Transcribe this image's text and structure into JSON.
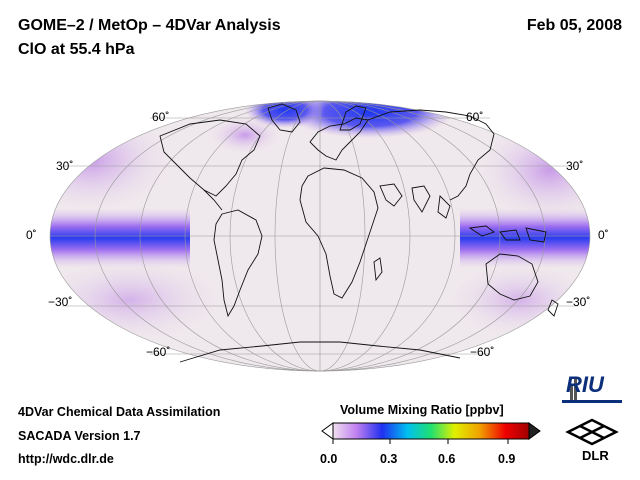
{
  "header": {
    "title_line1": "GOME–2 / MetOp – 4DVar Analysis",
    "title_line2": "ClO at 55.4 hPa",
    "date": "Feb 05, 2008"
  },
  "map": {
    "projection": "Mollweide",
    "lat_labels_left": [
      "60˚",
      "30˚",
      "0˚",
      "−30˚",
      "−60˚"
    ],
    "lat_labels_right": [
      "60˚",
      "30˚",
      "0˚",
      "−30˚",
      "−60˚"
    ],
    "colors": {
      "background": "#efe9ec",
      "high_blue": "#2a3cf0",
      "mid_purple": "#b070e8",
      "light_pink": "#e8d4ee"
    }
  },
  "colorbar": {
    "title": "Volume Mixing Ratio [ppbv]",
    "ticks": [
      "0.0",
      "0.3",
      "0.6",
      "0.9"
    ]
  },
  "footer": {
    "line1": "4DVar Chemical Data Assimilation",
    "line2": "SACADA Version 1.7",
    "line3": "http://wdc.dlr.de"
  },
  "logos": {
    "riu_text": "RIU",
    "dlr_text": "DLR"
  }
}
